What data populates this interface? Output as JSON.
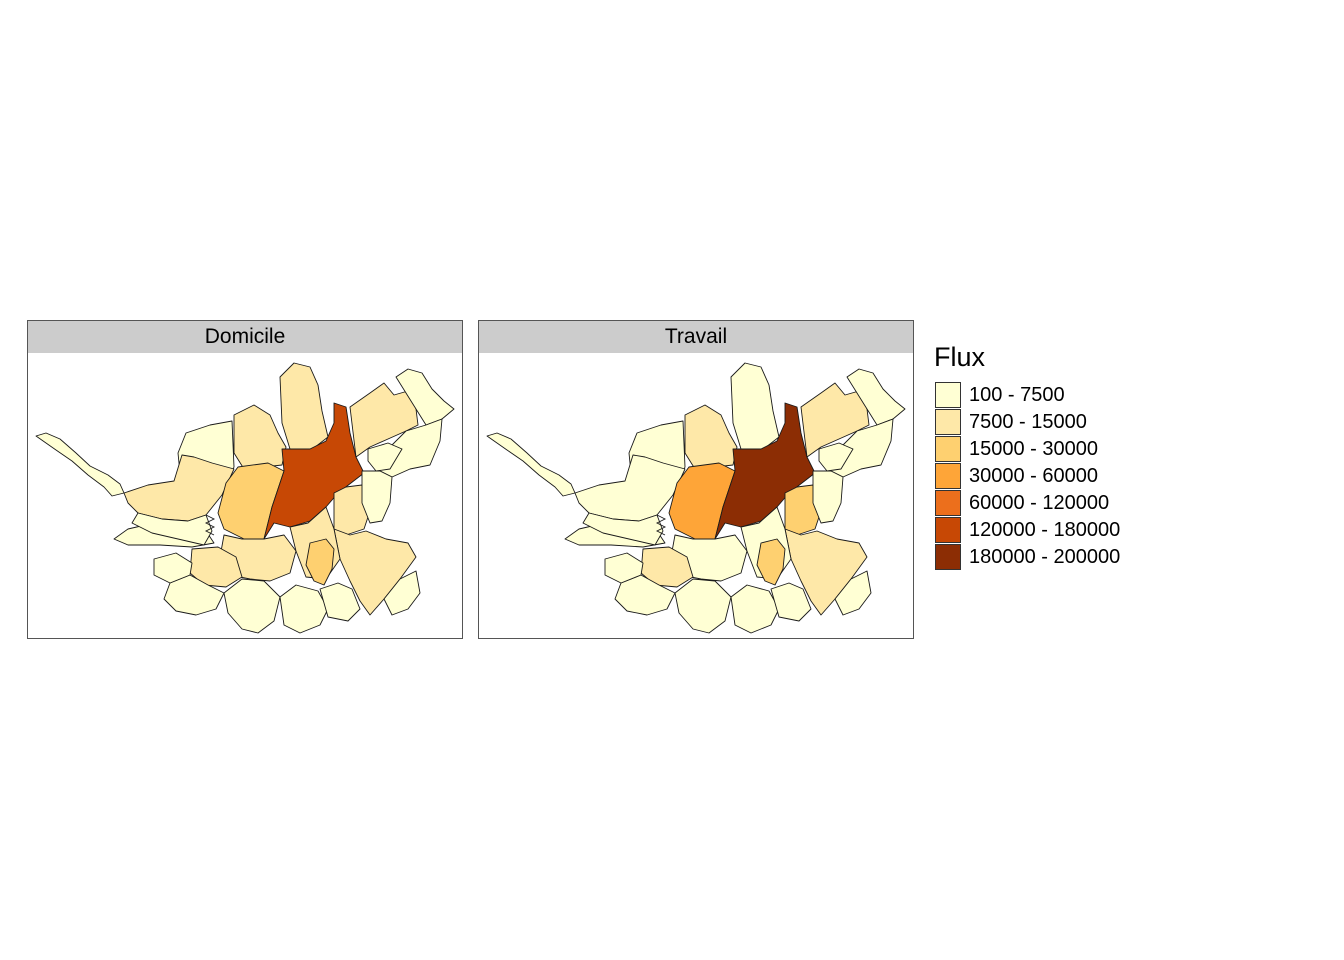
{
  "panels": [
    {
      "id": "domicile",
      "title": "Domicile",
      "region_classes": [
        0,
        0,
        1,
        1,
        1,
        2,
        5,
        0,
        1,
        1,
        1,
        0,
        0,
        0,
        1,
        1,
        2,
        1,
        0,
        0,
        0,
        0,
        0,
        0,
        0,
        0
      ]
    },
    {
      "id": "travail",
      "title": "Travail",
      "region_classes": [
        0,
        0,
        0,
        1,
        0,
        3,
        6,
        0,
        1,
        2,
        0,
        0,
        0,
        0,
        1,
        0,
        2,
        1,
        0,
        0,
        0,
        0,
        0,
        0,
        0,
        0
      ]
    }
  ],
  "legend": {
    "title": "Flux",
    "items": [
      {
        "label": "100 - 7500",
        "color": "#ffffd4"
      },
      {
        "label": "7500 - 15000",
        "color": "#fee8a8"
      },
      {
        "label": "15000 - 30000",
        "color": "#fed070"
      },
      {
        "label": "30000 - 60000",
        "color": "#fea538"
      },
      {
        "label": "60000 - 120000",
        "color": "#ec6f1c"
      },
      {
        "label": "120000 - 180000",
        "color": "#c74805"
      },
      {
        "label": "180000 - 200000",
        "color": "#8c2d04"
      }
    ]
  }
}
